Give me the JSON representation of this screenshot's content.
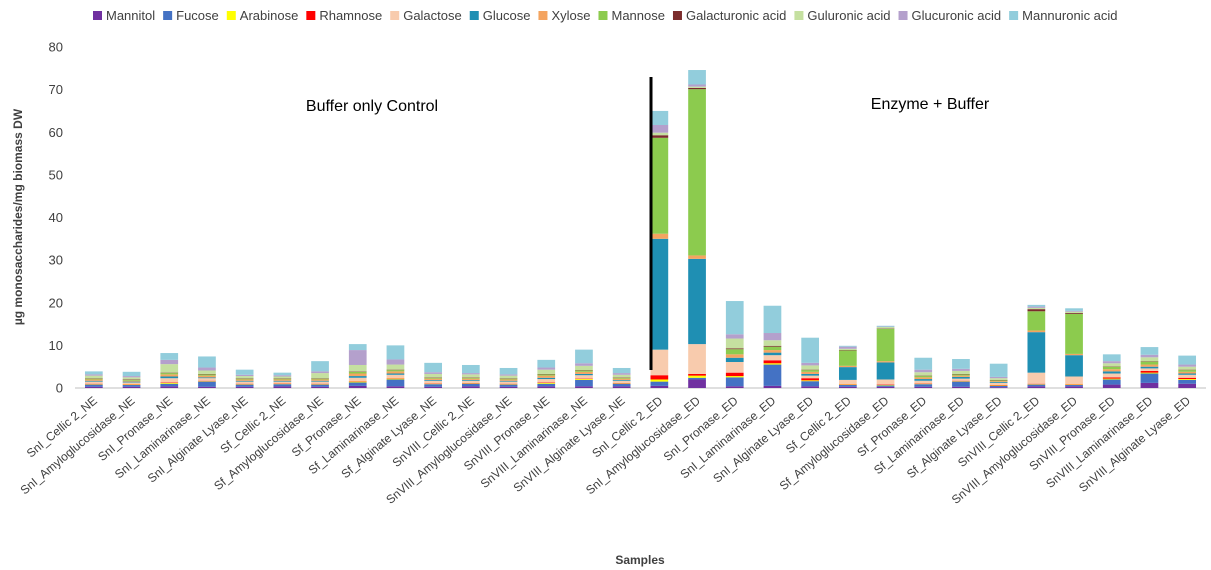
{
  "chart_data": {
    "type": "bar",
    "stacked": true,
    "xlabel": "Samples",
    "ylabel": "µg monosaccharides/mg biomass DW",
    "ylim": [
      0,
      80
    ],
    "yticks": [
      0,
      10,
      20,
      30,
      40,
      50,
      60,
      70,
      80
    ],
    "grid": false,
    "legend_position": "top",
    "annotations": [
      "Buffer only Control",
      "Enzyme + Buffer"
    ],
    "categories": [
      "SnI_Cellic 2_NE",
      "SnI_Amyloglucosidase_NE",
      "SnI_Pronase_NE",
      "SnI_Laminarinase_NE",
      "SnI_Alginate Lyase_NE",
      "Sf_Cellic 2_NE",
      "Sf_Amyloglucosidase_NE",
      "Sf_Pronase_NE",
      "Sf_Laminarinase_NE",
      "Sf_Alginate Lyase_NE",
      "SnVIII_Cellic 2_NE",
      "SnVIII_Amyloglucosidase_NE",
      "SnVIII_Pronase_NE",
      "SnVIII_Laminarinase_NE",
      "SnVIII_Alginate Lyase_NE",
      "SnI_Cellic 2_ED",
      "SnI_Amyloglucosidase_ED",
      "SnI_Pronase_ED",
      "SnI_Laminarinase_ED",
      "SnI_Alginate Lyase_ED",
      "Sf_Cellic 2_ED",
      "Sf_Amyloglucosidase_ED",
      "Sf_Pronase_ED",
      "Sf_Laminarinase_ED",
      "Sf_Alginate Lyase_ED",
      "SnVIII_Cellic 2_ED",
      "SnVIII_Amyloglucosidase_ED",
      "SnVIII_Pronase_ED",
      "SnVIII_Laminarinase_ED",
      "SnVIII_Alginate Lyase_ED"
    ],
    "series": [
      {
        "name": "Mannitol",
        "color": "#7030A0",
        "values": [
          0.3,
          0.3,
          0.4,
          0.3,
          0.3,
          0.4,
          0.3,
          0.5,
          0.4,
          0.3,
          0.4,
          0.3,
          0.4,
          0.4,
          0.4,
          0.5,
          2.0,
          0.4,
          0.5,
          0.4,
          0.3,
          0.3,
          0.3,
          0.3,
          0.2,
          0.4,
          0.4,
          0.8,
          1.2,
          1.0
        ]
      },
      {
        "name": "Fucose",
        "color": "#4472C4",
        "values": [
          0.5,
          0.4,
          0.6,
          1.2,
          0.5,
          0.5,
          0.5,
          0.8,
          1.6,
          0.6,
          0.6,
          0.5,
          0.6,
          1.5,
          0.6,
          1.0,
          0.4,
          2.1,
          5.0,
          1.2,
          0.4,
          0.3,
          0.6,
          1.2,
          0.3,
          0.4,
          0.3,
          1.2,
          2.2,
          0.9
        ]
      },
      {
        "name": "Arabinose",
        "color": "#FFFF00",
        "values": [
          0.1,
          0.1,
          0.2,
          0.1,
          0.1,
          0.1,
          0.1,
          0.2,
          0.2,
          0.1,
          0.1,
          0.1,
          0.2,
          0.2,
          0.1,
          0.5,
          0.5,
          0.3,
          0.3,
          0.2,
          0.1,
          0.1,
          0.1,
          0.1,
          0.1,
          0.1,
          0.1,
          0.2,
          0.2,
          0.2
        ]
      },
      {
        "name": "Rhamnose",
        "color": "#FF0000",
        "values": [
          0.1,
          0.1,
          0.1,
          0.1,
          0.1,
          0.1,
          0.1,
          0.1,
          0.1,
          0.1,
          0.1,
          0.1,
          0.1,
          0.1,
          0.1,
          1.0,
          0.4,
          0.8,
          0.7,
          0.5,
          0.1,
          0.1,
          0.1,
          0.1,
          0.1,
          0.1,
          0.1,
          0.3,
          0.4,
          0.3
        ]
      },
      {
        "name": "Galactose",
        "color": "#F8CBAD",
        "values": [
          0.5,
          0.4,
          1.0,
          0.6,
          0.5,
          0.4,
          0.5,
          0.8,
          0.8,
          0.6,
          0.5,
          0.5,
          0.8,
          0.8,
          0.5,
          6.0,
          7.0,
          2.5,
          1.2,
          0.6,
          1.0,
          1.2,
          0.6,
          0.5,
          0.5,
          2.6,
          1.8,
          0.9,
          0.6,
          0.7
        ]
      },
      {
        "name": "Glucose",
        "color": "#1F8FB3",
        "values": [
          0.2,
          0.2,
          0.4,
          0.2,
          0.2,
          0.2,
          0.2,
          0.4,
          0.3,
          0.2,
          0.2,
          0.2,
          0.3,
          0.3,
          0.2,
          26.0,
          20.0,
          1.0,
          0.6,
          0.4,
          3.0,
          4.0,
          0.4,
          0.4,
          0.2,
          9.5,
          5.0,
          0.5,
          0.4,
          0.3
        ]
      },
      {
        "name": "Xylose",
        "color": "#F4A460",
        "values": [
          0.3,
          0.2,
          0.5,
          0.4,
          0.3,
          0.3,
          0.3,
          0.6,
          0.5,
          0.3,
          0.3,
          0.3,
          0.5,
          0.5,
          0.3,
          1.2,
          0.8,
          0.8,
          0.6,
          0.5,
          0.3,
          0.3,
          0.4,
          0.3,
          0.2,
          0.4,
          0.3,
          0.5,
          0.5,
          0.4
        ]
      },
      {
        "name": "Mannose",
        "color": "#8CCB4E",
        "values": [
          0.2,
          0.2,
          0.3,
          0.3,
          0.2,
          0.2,
          0.2,
          0.4,
          0.3,
          0.2,
          0.2,
          0.2,
          0.3,
          0.3,
          0.2,
          22.5,
          39.0,
          1.2,
          0.8,
          0.4,
          3.6,
          7.6,
          0.3,
          0.3,
          0.2,
          4.5,
          9.4,
          0.6,
          0.7,
          0.4
        ]
      },
      {
        "name": "Galacturonic acid",
        "color": "#7B2C2C",
        "values": [
          0.1,
          0.1,
          0.1,
          0.1,
          0.1,
          0.1,
          0.1,
          0.1,
          0.1,
          0.1,
          0.1,
          0.1,
          0.1,
          0.1,
          0.1,
          0.6,
          0.3,
          0.2,
          0.2,
          0.1,
          0.1,
          0.1,
          0.1,
          0.1,
          0.1,
          0.5,
          0.2,
          0.1,
          0.1,
          0.1
        ]
      },
      {
        "name": "Guluronic acid",
        "color": "#C5E0A0",
        "values": [
          0.6,
          0.5,
          2.0,
          0.8,
          0.5,
          0.4,
          1.2,
          1.5,
          1.2,
          0.8,
          0.7,
          0.6,
          1.0,
          1.0,
          0.6,
          0.6,
          0.3,
          2.3,
          1.3,
          1.0,
          0.3,
          0.3,
          0.8,
          0.7,
          0.4,
          0.3,
          0.3,
          0.7,
          0.9,
          0.7
        ]
      },
      {
        "name": "Glucuronic acid",
        "color": "#B4A0CC",
        "values": [
          0.3,
          0.3,
          1.0,
          0.7,
          0.3,
          0.3,
          0.4,
          3.5,
          1.2,
          0.4,
          0.3,
          0.3,
          0.5,
          0.6,
          0.4,
          1.8,
          0.5,
          1.0,
          1.7,
          0.6,
          0.5,
          0.1,
          0.6,
          0.5,
          0.3,
          0.3,
          0.2,
          0.5,
          0.6,
          0.5
        ]
      },
      {
        "name": "Mannuronic acid",
        "color": "#92CDDC",
        "values": [
          0.7,
          1.0,
          1.6,
          2.6,
          1.2,
          0.6,
          2.4,
          1.4,
          3.3,
          2.2,
          1.9,
          1.5,
          1.8,
          3.2,
          1.2,
          3.3,
          3.4,
          7.8,
          6.4,
          5.9,
          0.2,
          0.2,
          2.8,
          2.3,
          3.1,
          0.4,
          0.6,
          1.6,
          1.8,
          2.1
        ]
      }
    ]
  }
}
